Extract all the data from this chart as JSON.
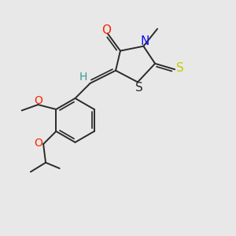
{
  "bg_color": "#e8e8e8",
  "bond_color": "#2a2a2a",
  "bond_width": 1.4,
  "atom_colors": {
    "O": "#ff2200",
    "N": "#1010ff",
    "S_thione": "#c8c800",
    "S_ring": "#2a2a2a",
    "H": "#3a9a8a",
    "O_red": "#ff2200"
  },
  "font_size": 10
}
